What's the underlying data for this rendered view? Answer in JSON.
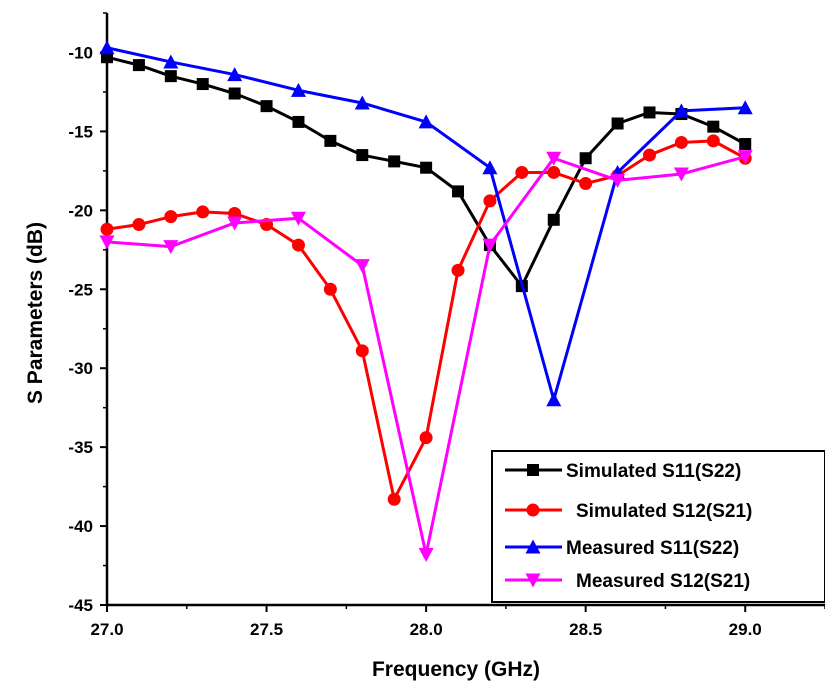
{
  "chart_data": {
    "type": "line",
    "xlabel": "Frequency (GHz)",
    "ylabel": "S Parameters (dB)",
    "xlim": [
      27.0,
      29.25
    ],
    "ylim": [
      -45,
      -7.5
    ],
    "xticks": [
      27.0,
      27.5,
      28.0,
      28.5,
      29.0
    ],
    "xtick_labels": [
      "27.0",
      "27.5",
      "28.0",
      "28.5",
      "29.0"
    ],
    "yticks": [
      -10,
      -15,
      -20,
      -25,
      -30,
      -35,
      -40,
      -45
    ],
    "ytick_labels": [
      "-10",
      "-15",
      "-20",
      "-25",
      "-30",
      "-35",
      "-40",
      "-45"
    ],
    "legend_position": "bottom-right",
    "series": [
      {
        "name": "Simulated S11(S22)",
        "color": "#000000",
        "marker": "square",
        "x": [
          27.0,
          27.1,
          27.2,
          27.3,
          27.4,
          27.5,
          27.6,
          27.7,
          27.8,
          27.9,
          28.0,
          28.1,
          28.2,
          28.3,
          28.4,
          28.5,
          28.6,
          28.7,
          28.8,
          28.9,
          29.0
        ],
        "y": [
          -10.3,
          -10.8,
          -11.5,
          -12.0,
          -12.6,
          -13.4,
          -14.4,
          -15.6,
          -16.5,
          -16.9,
          -17.3,
          -18.8,
          -22.2,
          -24.8,
          -20.6,
          -16.7,
          -14.5,
          -13.8,
          -13.9,
          -14.7,
          -15.8
        ]
      },
      {
        "name": "Simulated S12(S21)",
        "color": "#ff0000",
        "marker": "circle",
        "x": [
          27.0,
          27.1,
          27.2,
          27.3,
          27.4,
          27.5,
          27.6,
          27.7,
          27.8,
          27.9,
          28.0,
          28.1,
          28.2,
          28.3,
          28.4,
          28.5,
          28.6,
          28.7,
          28.8,
          28.9,
          29.0
        ],
        "y": [
          -21.2,
          -20.9,
          -20.4,
          -20.1,
          -20.2,
          -20.9,
          -22.2,
          -25.0,
          -28.9,
          -38.3,
          -34.4,
          -23.8,
          -19.4,
          -17.6,
          -17.6,
          -18.3,
          -17.8,
          -16.5,
          -15.7,
          -15.6,
          -16.7
        ]
      },
      {
        "name": "Measured S11(S22)",
        "color": "#0000ff",
        "marker": "triangle-up",
        "x": [
          27.0,
          27.2,
          27.4,
          27.6,
          27.8,
          28.0,
          28.2,
          28.4,
          28.6,
          28.8,
          29.0
        ],
        "y": [
          -9.7,
          -10.6,
          -11.4,
          -12.4,
          -13.2,
          -14.4,
          -17.3,
          -32.0,
          -17.6,
          -13.7,
          -13.5
        ]
      },
      {
        "name": "Measured S12(S21)",
        "color": "#ff00ff",
        "marker": "triangle-down",
        "x": [
          27.0,
          27.2,
          27.4,
          27.6,
          27.8,
          28.0,
          28.2,
          28.4,
          28.6,
          28.8,
          29.0
        ],
        "y": [
          -22.0,
          -22.3,
          -20.8,
          -20.5,
          -23.5,
          -41.8,
          -22.2,
          -16.7,
          -18.1,
          -17.7,
          -16.6
        ]
      }
    ]
  }
}
